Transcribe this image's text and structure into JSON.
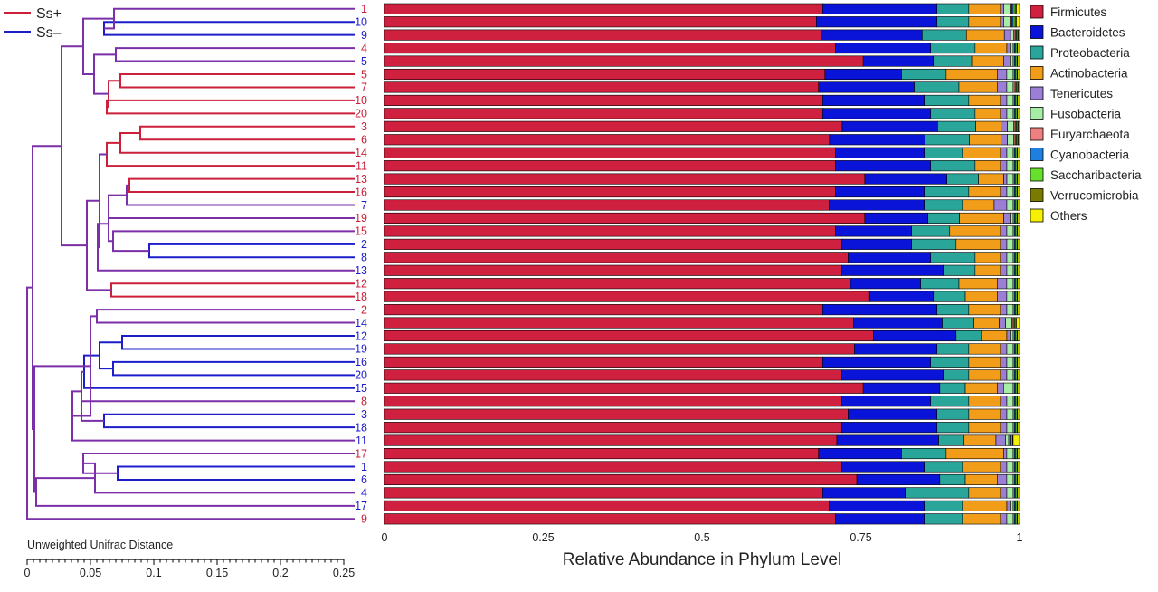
{
  "chart_data": {
    "type": "bar",
    "orientation": "horizontal",
    "stacked": true,
    "xlabel": "Relative Abundance in Phylum Level",
    "xlim": [
      0,
      1
    ],
    "xticks": [
      "0",
      "0.25",
      "0.5",
      "0.75",
      "1"
    ],
    "legend_position": "right",
    "group_legend": [
      {
        "label": "Ss+",
        "color": "#cc1f3a"
      },
      {
        "label": "Ss–",
        "color": "#1d1dcc"
      }
    ],
    "tree_axis": {
      "label": "Unweighted Unifrac Distance",
      "range": [
        0,
        0.25
      ],
      "ticks": [
        "0",
        "0.05",
        "0.1",
        "0.15",
        "0.2",
        "0.25"
      ]
    },
    "phyla": [
      {
        "name": "Firmicutes",
        "color": "#d0203f"
      },
      {
        "name": "Bacteroidetes",
        "color": "#0a14d8"
      },
      {
        "name": "Proteobacteria",
        "color": "#2aa59a"
      },
      {
        "name": "Actinobacteria",
        "color": "#f29d1a"
      },
      {
        "name": "Tenericutes",
        "color": "#9b7fd4"
      },
      {
        "name": "Fusobacteria",
        "color": "#a6eea6"
      },
      {
        "name": "Euryarchaeota",
        "color": "#f08080"
      },
      {
        "name": "Cyanobacteria",
        "color": "#1e7fe0"
      },
      {
        "name": "Saccharibacteria",
        "color": "#66e02a"
      },
      {
        "name": "Verrucomicrobia",
        "color": "#7a7a00"
      },
      {
        "name": "Others",
        "color": "#f5f000"
      }
    ],
    "samples": [
      {
        "label": "1",
        "group": "Ss+",
        "values": [
          0.69,
          0.18,
          0.05,
          0.05,
          0.005,
          0.01,
          0.003,
          0.002,
          0.003,
          0.002,
          0.005
        ]
      },
      {
        "label": "10",
        "group": "Ss-",
        "values": [
          0.68,
          0.19,
          0.05,
          0.05,
          0.005,
          0.01,
          0.003,
          0.002,
          0.003,
          0.002,
          0.005
        ]
      },
      {
        "label": "9",
        "group": "Ss-",
        "values": [
          0.69,
          0.16,
          0.07,
          0.06,
          0.01,
          0.005,
          0.002,
          0.002,
          0.002,
          0.001,
          0.002
        ]
      },
      {
        "label": "4",
        "group": "Ss+",
        "values": [
          0.71,
          0.15,
          0.07,
          0.05,
          0.005,
          0.005,
          0.002,
          0.002,
          0.002,
          0.001,
          0.003
        ]
      },
      {
        "label": "5",
        "group": "Ss-",
        "values": [
          0.75,
          0.11,
          0.06,
          0.05,
          0.01,
          0.005,
          0.002,
          0.002,
          0.002,
          0.001,
          0.003
        ]
      },
      {
        "label": "5",
        "group": "Ss+",
        "values": [
          0.69,
          0.12,
          0.07,
          0.08,
          0.015,
          0.01,
          0.002,
          0.002,
          0.002,
          0.001,
          0.003
        ]
      },
      {
        "label": "7",
        "group": "Ss+",
        "values": [
          0.68,
          0.15,
          0.07,
          0.06,
          0.015,
          0.01,
          0.003,
          0.002,
          0.002,
          0.001,
          0.002
        ]
      },
      {
        "label": "10",
        "group": "Ss+",
        "values": [
          0.69,
          0.16,
          0.07,
          0.05,
          0.01,
          0.01,
          0.002,
          0.002,
          0.002,
          0.001,
          0.003
        ]
      },
      {
        "label": "20",
        "group": "Ss+",
        "values": [
          0.69,
          0.17,
          0.07,
          0.04,
          0.01,
          0.01,
          0.002,
          0.002,
          0.002,
          0.001,
          0.003
        ]
      },
      {
        "label": "3",
        "group": "Ss+",
        "values": [
          0.72,
          0.15,
          0.06,
          0.04,
          0.01,
          0.01,
          0.002,
          0.002,
          0.002,
          0.001,
          0.002
        ]
      },
      {
        "label": "6",
        "group": "Ss+",
        "values": [
          0.7,
          0.15,
          0.07,
          0.05,
          0.01,
          0.01,
          0.002,
          0.002,
          0.002,
          0.001,
          0.002
        ]
      },
      {
        "label": "14",
        "group": "Ss+",
        "values": [
          0.71,
          0.14,
          0.06,
          0.06,
          0.01,
          0.01,
          0.002,
          0.002,
          0.002,
          0.001,
          0.003
        ]
      },
      {
        "label": "11",
        "group": "Ss+",
        "values": [
          0.71,
          0.15,
          0.07,
          0.04,
          0.01,
          0.01,
          0.002,
          0.002,
          0.002,
          0.001,
          0.003
        ]
      },
      {
        "label": "13",
        "group": "Ss+",
        "values": [
          0.76,
          0.13,
          0.05,
          0.04,
          0.005,
          0.01,
          0.002,
          0.002,
          0.002,
          0.001,
          0.003
        ]
      },
      {
        "label": "16",
        "group": "Ss+",
        "values": [
          0.71,
          0.14,
          0.07,
          0.05,
          0.01,
          0.01,
          0.002,
          0.002,
          0.002,
          0.001,
          0.003
        ]
      },
      {
        "label": "7",
        "group": "Ss-",
        "values": [
          0.7,
          0.15,
          0.06,
          0.05,
          0.02,
          0.01,
          0.002,
          0.002,
          0.002,
          0.001,
          0.003
        ]
      },
      {
        "label": "19",
        "group": "Ss+",
        "values": [
          0.76,
          0.1,
          0.05,
          0.07,
          0.01,
          0.005,
          0.002,
          0.002,
          0.002,
          0.001,
          0.003
        ]
      },
      {
        "label": "15",
        "group": "Ss+",
        "values": [
          0.71,
          0.12,
          0.06,
          0.08,
          0.01,
          0.01,
          0.002,
          0.002,
          0.002,
          0.001,
          0.003
        ]
      },
      {
        "label": "2",
        "group": "Ss-",
        "values": [
          0.72,
          0.11,
          0.07,
          0.07,
          0.01,
          0.01,
          0.002,
          0.002,
          0.002,
          0.001,
          0.003
        ]
      },
      {
        "label": "8",
        "group": "Ss-",
        "values": [
          0.73,
          0.13,
          0.07,
          0.04,
          0.01,
          0.01,
          0.002,
          0.002,
          0.002,
          0.001,
          0.003
        ]
      },
      {
        "label": "13",
        "group": "Ss-",
        "values": [
          0.72,
          0.16,
          0.05,
          0.04,
          0.01,
          0.01,
          0.002,
          0.002,
          0.002,
          0.001,
          0.003
        ]
      },
      {
        "label": "12",
        "group": "Ss+",
        "values": [
          0.73,
          0.11,
          0.06,
          0.06,
          0.015,
          0.01,
          0.002,
          0.002,
          0.002,
          0.001,
          0.003
        ]
      },
      {
        "label": "18",
        "group": "Ss+",
        "values": [
          0.76,
          0.1,
          0.05,
          0.05,
          0.015,
          0.01,
          0.002,
          0.002,
          0.002,
          0.001,
          0.003
        ]
      },
      {
        "label": "2",
        "group": "Ss+",
        "values": [
          0.69,
          0.18,
          0.05,
          0.05,
          0.01,
          0.01,
          0.002,
          0.002,
          0.002,
          0.001,
          0.003
        ]
      },
      {
        "label": "14",
        "group": "Ss-",
        "values": [
          0.74,
          0.14,
          0.05,
          0.04,
          0.01,
          0.01,
          0.002,
          0.002,
          0.002,
          0.001,
          0.005
        ]
      },
      {
        "label": "12",
        "group": "Ss-",
        "values": [
          0.77,
          0.13,
          0.04,
          0.04,
          0.005,
          0.005,
          0.002,
          0.002,
          0.002,
          0.001,
          0.003
        ]
      },
      {
        "label": "19",
        "group": "Ss-",
        "values": [
          0.74,
          0.13,
          0.05,
          0.05,
          0.01,
          0.01,
          0.002,
          0.002,
          0.002,
          0.001,
          0.003
        ]
      },
      {
        "label": "16",
        "group": "Ss-",
        "values": [
          0.69,
          0.17,
          0.06,
          0.05,
          0.01,
          0.01,
          0.002,
          0.002,
          0.002,
          0.001,
          0.003
        ]
      },
      {
        "label": "20",
        "group": "Ss-",
        "values": [
          0.72,
          0.16,
          0.04,
          0.05,
          0.01,
          0.01,
          0.002,
          0.002,
          0.002,
          0.001,
          0.003
        ]
      },
      {
        "label": "15",
        "group": "Ss-",
        "values": [
          0.75,
          0.12,
          0.04,
          0.05,
          0.01,
          0.015,
          0.002,
          0.002,
          0.002,
          0.001,
          0.003
        ]
      },
      {
        "label": "8",
        "group": "Ss+",
        "values": [
          0.72,
          0.14,
          0.06,
          0.05,
          0.01,
          0.01,
          0.002,
          0.002,
          0.002,
          0.001,
          0.003
        ]
      },
      {
        "label": "3",
        "group": "Ss-",
        "values": [
          0.73,
          0.14,
          0.05,
          0.05,
          0.01,
          0.01,
          0.002,
          0.002,
          0.002,
          0.001,
          0.003
        ]
      },
      {
        "label": "18",
        "group": "Ss-",
        "values": [
          0.72,
          0.15,
          0.05,
          0.05,
          0.01,
          0.01,
          0.002,
          0.002,
          0.002,
          0.001,
          0.003
        ]
      },
      {
        "label": "11",
        "group": "Ss-",
        "values": [
          0.71,
          0.16,
          0.04,
          0.05,
          0.015,
          0.005,
          0.002,
          0.002,
          0.002,
          0.001,
          0.01
        ]
      },
      {
        "label": "17",
        "group": "Ss+",
        "values": [
          0.68,
          0.13,
          0.07,
          0.09,
          0.005,
          0.01,
          0.002,
          0.002,
          0.002,
          0.001,
          0.003
        ]
      },
      {
        "label": "1",
        "group": "Ss-",
        "values": [
          0.72,
          0.13,
          0.06,
          0.06,
          0.01,
          0.01,
          0.002,
          0.002,
          0.002,
          0.001,
          0.003
        ]
      },
      {
        "label": "6",
        "group": "Ss-",
        "values": [
          0.74,
          0.13,
          0.04,
          0.05,
          0.015,
          0.01,
          0.002,
          0.002,
          0.002,
          0.001,
          0.003
        ]
      },
      {
        "label": "4",
        "group": "Ss-",
        "values": [
          0.69,
          0.13,
          0.1,
          0.05,
          0.01,
          0.01,
          0.002,
          0.002,
          0.002,
          0.001,
          0.003
        ]
      },
      {
        "label": "17",
        "group": "Ss-",
        "values": [
          0.7,
          0.15,
          0.06,
          0.07,
          0.005,
          0.005,
          0.002,
          0.002,
          0.002,
          0.001,
          0.003
        ]
      },
      {
        "label": "9",
        "group": "Ss+",
        "values": [
          0.71,
          0.14,
          0.06,
          0.06,
          0.01,
          0.01,
          0.002,
          0.002,
          0.002,
          0.001,
          0.003
        ]
      }
    ]
  }
}
